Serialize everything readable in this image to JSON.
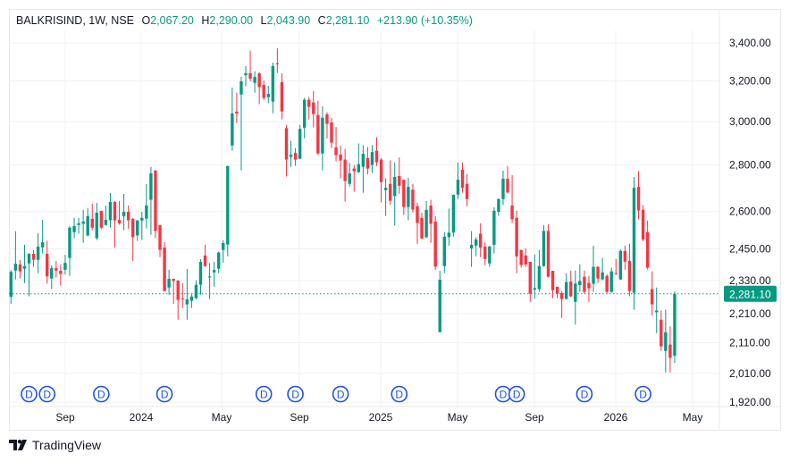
{
  "legend": {
    "symbol": "BALKRISIND, 1W, NSE",
    "open_label": "O",
    "open": "2,067.20",
    "high_label": "H",
    "high": "2,290.00",
    "low_label": "L",
    "low": "2,043.90",
    "close_label": "C",
    "close": "2,281.10",
    "change": "+213.90 (+10.35%)"
  },
  "colors": {
    "up": "#089981",
    "down": "#F23645",
    "grid": "#F0F1F3",
    "marker": "#1E53E5"
  },
  "brand": "TradingView",
  "chart_data": {
    "type": "candlestick",
    "interval": "1W",
    "y_scale": "log",
    "ylim": [
      1920,
      3400
    ],
    "grid": true,
    "y_ticks": [
      3400,
      3200,
      3000,
      2800,
      2600,
      2450,
      2330,
      2210,
      2110,
      2010,
      1920
    ],
    "y_tick_labels": [
      "3,400.00",
      "3,200.00",
      "3,000.00",
      "2,800.00",
      "2,600.00",
      "2,450.00",
      "2,330.00",
      "2,210.00",
      "2,110.00",
      "2,010.00",
      "1,920.00"
    ],
    "x_tick_labels": [
      "Sep",
      "2024",
      "May",
      "Sep",
      "2025",
      "May",
      "Sep",
      "2026",
      "May"
    ],
    "last_price": 2281.1,
    "last_price_label": "2,281.10",
    "dividend_marker_label": "D",
    "dividend_marker_candle_indices": [
      4,
      8,
      20,
      34,
      56,
      63,
      73,
      86,
      109,
      112,
      127,
      140
    ],
    "ohlc": [
      [
        2270,
        2369,
        2245,
        2362
      ],
      [
        2367,
        2520,
        2334,
        2393
      ],
      [
        2390,
        2407,
        2337,
        2364
      ],
      [
        2374,
        2466,
        2321,
        2384
      ],
      [
        2394,
        2433,
        2272,
        2431
      ],
      [
        2431,
        2445,
        2381,
        2408
      ],
      [
        2408,
        2512,
        2357,
        2459
      ],
      [
        2456,
        2566,
        2432,
        2476
      ],
      [
        2431,
        2482,
        2318,
        2345
      ],
      [
        2337,
        2386,
        2298,
        2376
      ],
      [
        2376,
        2403,
        2341,
        2367
      ],
      [
        2366,
        2390,
        2311,
        2354
      ],
      [
        2370,
        2427,
        2352,
        2396
      ],
      [
        2415,
        2540,
        2347,
        2534
      ],
      [
        2516,
        2574,
        2492,
        2541
      ],
      [
        2545,
        2574,
        2510,
        2552
      ],
      [
        2550,
        2607,
        2474,
        2559
      ],
      [
        2503,
        2614,
        2500,
        2581
      ],
      [
        2570,
        2633,
        2524,
        2534
      ],
      [
        2492,
        2636,
        2485,
        2595
      ],
      [
        2603,
        2603,
        2528,
        2534
      ],
      [
        2545,
        2625,
        2543,
        2566
      ],
      [
        2564,
        2678,
        2535,
        2640
      ],
      [
        2640,
        2644,
        2456,
        2564
      ],
      [
        2566,
        2644,
        2546,
        2552
      ],
      [
        2581,
        2674,
        2524,
        2599
      ],
      [
        2599,
        2625,
        2530,
        2564
      ],
      [
        2570,
        2574,
        2404,
        2496
      ],
      [
        2503,
        2566,
        2481,
        2563
      ],
      [
        2563,
        2599,
        2485,
        2574
      ],
      [
        2571,
        2716,
        2531,
        2625
      ],
      [
        2649,
        2791,
        2506,
        2763
      ],
      [
        2775,
        2779,
        2492,
        2521
      ],
      [
        2545,
        2545,
        2418,
        2446
      ],
      [
        2455,
        2476,
        2290,
        2291
      ],
      [
        2304,
        2370,
        2277,
        2336
      ],
      [
        2336,
        2337,
        2245,
        2328
      ],
      [
        2330,
        2330,
        2189,
        2259
      ],
      [
        2264,
        2320,
        2230,
        2261
      ],
      [
        2243,
        2373,
        2189,
        2261
      ],
      [
        2256,
        2282,
        2230,
        2271
      ],
      [
        2265,
        2330,
        2262,
        2314
      ],
      [
        2314,
        2410,
        2278,
        2400
      ],
      [
        2424,
        2466,
        2381,
        2384
      ],
      [
        2341,
        2396,
        2262,
        2345
      ],
      [
        2360,
        2400,
        2307,
        2369
      ],
      [
        2374,
        2440,
        2357,
        2436
      ],
      [
        2446,
        2484,
        2397,
        2473
      ],
      [
        2467,
        2797,
        2421,
        2795
      ],
      [
        2888,
        3167,
        2864,
        3039
      ],
      [
        3048,
        3141,
        2993,
        3039
      ],
      [
        3132,
        3221,
        2776,
        3198
      ],
      [
        3230,
        3277,
        3173,
        3240
      ],
      [
        3240,
        3358,
        3198,
        3212
      ],
      [
        3191,
        3250,
        3141,
        3221
      ],
      [
        3240,
        3245,
        3084,
        3169
      ],
      [
        3180,
        3203,
        3106,
        3115
      ],
      [
        3119,
        3176,
        3089,
        3135
      ],
      [
        3097,
        3296,
        3040,
        3277
      ],
      [
        3291,
        3371,
        3241,
        3288
      ],
      [
        3194,
        3240,
        3010,
        3049
      ],
      [
        2969,
        2984,
        2749,
        2824
      ],
      [
        2836,
        2909,
        2792,
        2846
      ],
      [
        2854,
        2876,
        2796,
        2824
      ],
      [
        2828,
        2984,
        2826,
        2965
      ],
      [
        2971,
        3115,
        2921,
        3106
      ],
      [
        3106,
        3119,
        3010,
        3071
      ],
      [
        3093,
        3150,
        2972,
        3036
      ],
      [
        3032,
        3101,
        2844,
        2852
      ],
      [
        2852,
        3074,
        2776,
        3018
      ],
      [
        3035,
        3045,
        2921,
        2989
      ],
      [
        2996,
        3018,
        2876,
        2901
      ],
      [
        2879,
        2975,
        2816,
        2844
      ],
      [
        2847,
        2887,
        2741,
        2820
      ],
      [
        2824,
        2872,
        2641,
        2729
      ],
      [
        2717,
        2808,
        2705,
        2763
      ],
      [
        2784,
        2800,
        2683,
        2772
      ],
      [
        2768,
        2897,
        2765,
        2803
      ],
      [
        2792,
        2889,
        2679,
        2850
      ],
      [
        2831,
        2881,
        2758,
        2784
      ],
      [
        2800,
        2889,
        2765,
        2858
      ],
      [
        2864,
        2926,
        2796,
        2812
      ],
      [
        2824,
        2831,
        2638,
        2725
      ],
      [
        2690,
        2741,
        2582,
        2700
      ],
      [
        2717,
        2820,
        2627,
        2645
      ],
      [
        2665,
        2811,
        2543,
        2747
      ],
      [
        2751,
        2834,
        2675,
        2709
      ],
      [
        2735,
        2735,
        2586,
        2619
      ],
      [
        2619,
        2743,
        2564,
        2704
      ],
      [
        2692,
        2717,
        2596,
        2608
      ],
      [
        2622,
        2637,
        2470,
        2553
      ],
      [
        2574,
        2595,
        2488,
        2491
      ],
      [
        2496,
        2644,
        2492,
        2607
      ],
      [
        2625,
        2649,
        2474,
        2550
      ],
      [
        2559,
        2581,
        2369,
        2382
      ],
      [
        2146,
        2366,
        2146,
        2333
      ],
      [
        2384,
        2516,
        2357,
        2498
      ],
      [
        2496,
        2612,
        2462,
        2514
      ],
      [
        2514,
        2672,
        2498,
        2670
      ],
      [
        2671,
        2811,
        2652,
        2735
      ],
      [
        2779,
        2811,
        2679,
        2700
      ],
      [
        2717,
        2759,
        2622,
        2652
      ],
      [
        2452,
        2520,
        2381,
        2466
      ],
      [
        2463,
        2496,
        2421,
        2487
      ],
      [
        2510,
        2552,
        2418,
        2455
      ],
      [
        2459,
        2477,
        2387,
        2411
      ],
      [
        2394,
        2462,
        2381,
        2459
      ],
      [
        2466,
        2618,
        2432,
        2603
      ],
      [
        2599,
        2656,
        2582,
        2652
      ],
      [
        2652,
        2775,
        2627,
        2739
      ],
      [
        2739,
        2795,
        2676,
        2680
      ],
      [
        2625,
        2755,
        2553,
        2568
      ],
      [
        2574,
        2603,
        2357,
        2421
      ],
      [
        2446,
        2446,
        2378,
        2388
      ],
      [
        2424,
        2452,
        2381,
        2390
      ],
      [
        2400,
        2400,
        2252,
        2282
      ],
      [
        2296,
        2428,
        2263,
        2302
      ],
      [
        2298,
        2446,
        2288,
        2384
      ],
      [
        2384,
        2545,
        2381,
        2521
      ],
      [
        2521,
        2548,
        2341,
        2344
      ],
      [
        2366,
        2366,
        2265,
        2294
      ],
      [
        2307,
        2307,
        2265,
        2282
      ],
      [
        2284,
        2291,
        2195,
        2262
      ],
      [
        2263,
        2357,
        2260,
        2324
      ],
      [
        2326,
        2367,
        2269,
        2272
      ],
      [
        2252,
        2367,
        2172,
        2318
      ],
      [
        2313,
        2391,
        2288,
        2328
      ],
      [
        2344,
        2367,
        2282,
        2288
      ],
      [
        2321,
        2347,
        2252,
        2301
      ],
      [
        2318,
        2462,
        2288,
        2381
      ],
      [
        2381,
        2384,
        2321,
        2337
      ],
      [
        2334,
        2415,
        2331,
        2360
      ],
      [
        2347,
        2354,
        2282,
        2288
      ],
      [
        2288,
        2377,
        2285,
        2364
      ],
      [
        2357,
        2411,
        2351,
        2354
      ],
      [
        2334,
        2449,
        2332,
        2442
      ],
      [
        2442,
        2463,
        2370,
        2401
      ],
      [
        2404,
        2470,
        2272,
        2291
      ],
      [
        2285,
        2747,
        2224,
        2700
      ],
      [
        2704,
        2772,
        2568,
        2604
      ],
      [
        2607,
        2627,
        2480,
        2487
      ],
      [
        2516,
        2563,
        2371,
        2378
      ],
      [
        2298,
        2364,
        2203,
        2243
      ],
      [
        2215,
        2304,
        2143,
        2221
      ],
      [
        2189,
        2221,
        2083,
        2098
      ],
      [
        2083,
        2224,
        2013,
        2146
      ],
      [
        2104,
        2166,
        2013,
        2060
      ],
      [
        2067.2,
        2290,
        2043.9,
        2281.1
      ]
    ]
  }
}
